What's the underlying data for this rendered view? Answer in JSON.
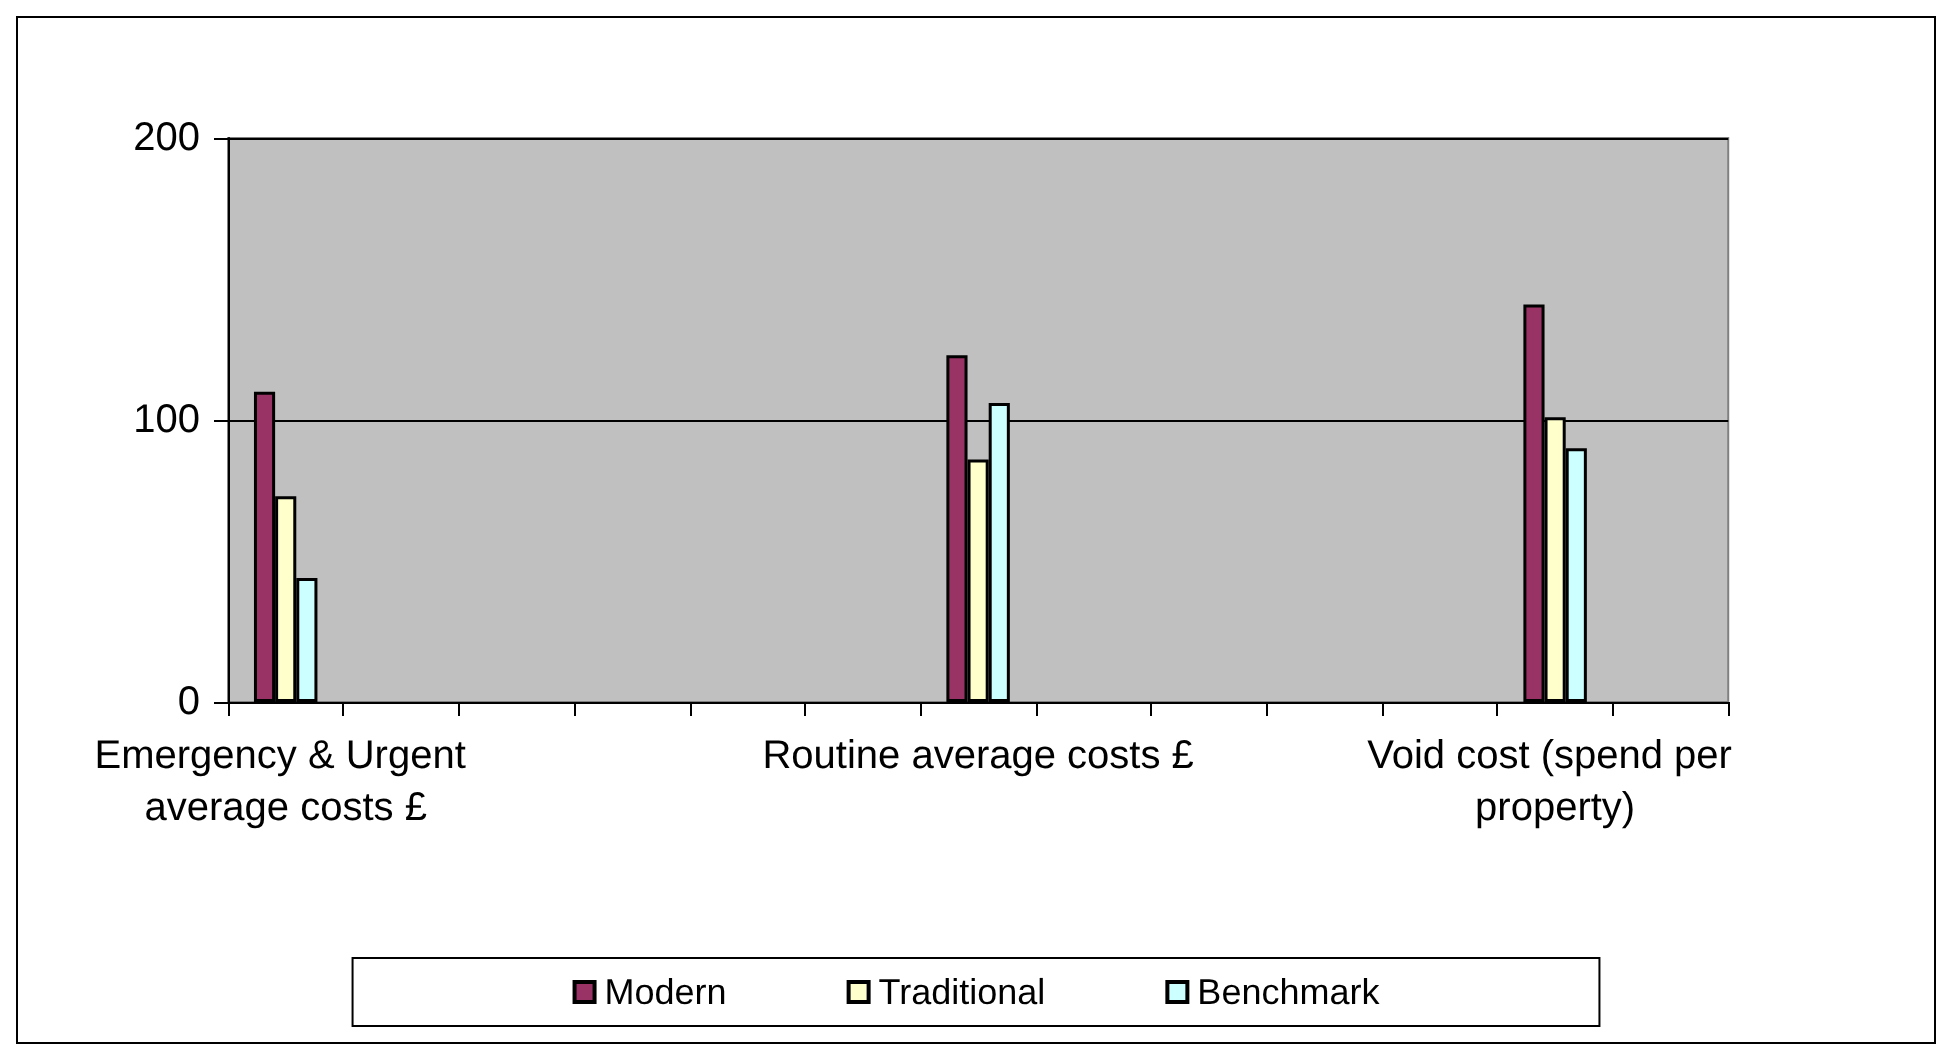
{
  "chart_data": {
    "type": "bar",
    "categories": [
      "Emergency & Urgent average costs £",
      null,
      null,
      null,
      null,
      null,
      "Routine average costs £",
      null,
      null,
      null,
      null,
      "Void cost (spend per property)",
      null
    ],
    "series": [
      {
        "name": "Modern",
        "color": "#993366",
        "values": [
          110,
          null,
          null,
          null,
          null,
          null,
          123,
          null,
          null,
          null,
          null,
          141,
          null
        ]
      },
      {
        "name": "Traditional",
        "color": "#ffffcc",
        "values": [
          73,
          null,
          null,
          null,
          null,
          null,
          86,
          null,
          null,
          null,
          null,
          101,
          null
        ]
      },
      {
        "name": "Benchmark",
        "color": "#ccffff",
        "values": [
          44,
          null,
          null,
          null,
          null,
          null,
          106,
          null,
          null,
          null,
          null,
          90,
          null
        ]
      }
    ],
    "ylim": [
      0,
      200
    ],
    "yticks": [
      0,
      100,
      200
    ],
    "grid": "y",
    "legend": "bottom"
  }
}
